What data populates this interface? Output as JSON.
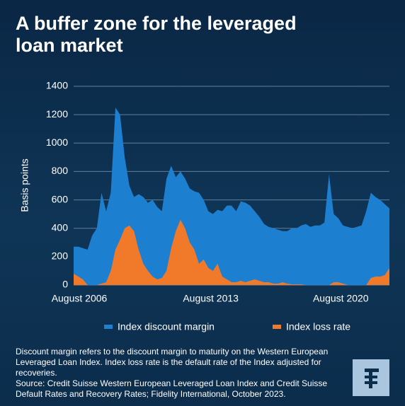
{
  "chart_data": {
    "type": "area",
    "title": "A buffer zone for the leveraged loan market",
    "y_label": "Basis points",
    "x": [
      "2006-08",
      "2006-11",
      "2007-02",
      "2007-05",
      "2007-08",
      "2007-11",
      "2008-02",
      "2008-05",
      "2008-08",
      "2008-11",
      "2009-02",
      "2009-05",
      "2009-08",
      "2009-11",
      "2010-02",
      "2010-05",
      "2010-08",
      "2010-11",
      "2011-02",
      "2011-05",
      "2011-08",
      "2011-11",
      "2012-02",
      "2012-05",
      "2012-08",
      "2012-11",
      "2013-02",
      "2013-05",
      "2013-08",
      "2013-11",
      "2014-02",
      "2014-05",
      "2014-08",
      "2014-11",
      "2015-02",
      "2015-05",
      "2015-08",
      "2015-11",
      "2016-02",
      "2016-05",
      "2016-08",
      "2016-11",
      "2017-02",
      "2017-05",
      "2017-08",
      "2017-11",
      "2018-02",
      "2018-05",
      "2018-08",
      "2018-11",
      "2019-02",
      "2019-05",
      "2019-08",
      "2019-11",
      "2020-02",
      "2020-05",
      "2020-08",
      "2020-11",
      "2021-02",
      "2021-05",
      "2021-08",
      "2021-11",
      "2022-02",
      "2022-05",
      "2022-08",
      "2022-11",
      "2023-02",
      "2023-05",
      "2023-08"
    ],
    "series": [
      {
        "name": "Index discount margin",
        "color": "#1c7fd0",
        "values": [
          270,
          270,
          260,
          250,
          350,
          400,
          650,
          520,
          650,
          1250,
          1200,
          900,
          700,
          620,
          640,
          620,
          580,
          600,
          550,
          520,
          750,
          840,
          760,
          800,
          750,
          680,
          660,
          650,
          600,
          520,
          500,
          530,
          520,
          560,
          560,
          520,
          590,
          580,
          560,
          520,
          480,
          430,
          410,
          400,
          390,
          380,
          380,
          400,
          400,
          420,
          430,
          410,
          420,
          420,
          440,
          780,
          500,
          470,
          420,
          410,
          400,
          410,
          420,
          520,
          650,
          620,
          600,
          570,
          540
        ]
      },
      {
        "name": "Index loss rate",
        "color": "#f07a2a",
        "values": [
          80,
          60,
          40,
          0,
          0,
          0,
          10,
          20,
          100,
          250,
          320,
          400,
          420,
          380,
          250,
          150,
          100,
          60,
          40,
          50,
          100,
          260,
          380,
          460,
          400,
          300,
          250,
          150,
          180,
          120,
          100,
          150,
          60,
          40,
          20,
          20,
          30,
          20,
          30,
          40,
          30,
          20,
          20,
          10,
          10,
          20,
          10,
          5,
          5,
          5,
          0,
          0,
          0,
          0,
          0,
          0,
          20,
          20,
          10,
          0,
          0,
          0,
          0,
          0,
          50,
          60,
          60,
          70,
          120
        ]
      }
    ],
    "xlim": [
      "2006-08",
      "2023-08"
    ],
    "xticks": [
      {
        "value": "2006-08",
        "label": "August 2006"
      },
      {
        "value": "2013-08",
        "label": "August 2013"
      },
      {
        "value": "2020-08",
        "label": "August 2020"
      }
    ],
    "ylim": [
      0,
      1400
    ],
    "yticks": [
      0,
      200,
      400,
      600,
      800,
      1000,
      1200,
      1400
    ],
    "grid": true,
    "legend": "bottom"
  },
  "notes": [
    "Discount margin refers to the discount margin to maturity on the Western European Leveraged Loan Index. Index loss rate is the default rate of the Index adjusted for recoveries.",
    "Source: Credit Suisse Western European Leveraged Loan Index and Credit Suisse Default Rates and Recovery Rates; Fidelity International, October 2023."
  ]
}
